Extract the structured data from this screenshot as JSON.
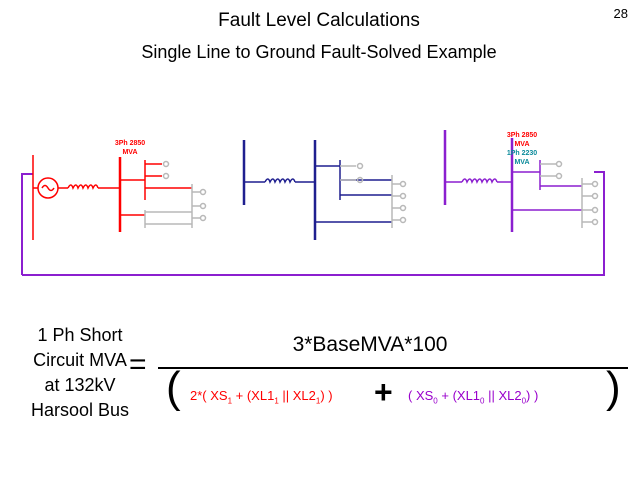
{
  "slide_number": "28",
  "title": "Fault Level Calculations",
  "subtitle": "Single Line to Ground Fault-Solved Example",
  "diagram": {
    "bus1_label": [
      "3Ph 2850",
      "MVA"
    ],
    "bus4_label_3ph": [
      "3Ph 2850",
      "MVA"
    ],
    "bus4_label_1ph": [
      "1Ph 2230",
      "MVA"
    ],
    "colors": {
      "red": "#ff0000",
      "blue": "#1f1f8f",
      "purple": "#8b1fcf",
      "gray": "#b8b8b8"
    }
  },
  "formula": {
    "lhs": [
      "1 Ph Short",
      "Circuit MVA",
      "at 132kV",
      "Harsool Bus"
    ],
    "equals": "=",
    "numerator": "3*BaseMVA*100",
    "left_paren": "(",
    "right_paren": ")",
    "plus": "+",
    "term1": {
      "prefix": "2*( XS",
      "sub1": "1",
      "mid1": " + (XL1",
      "sub2": "1",
      "mid2": " || XL2",
      "sub3": "1",
      "suffix": ")  )"
    },
    "term2": {
      "prefix": "(  XS",
      "sub1": "0",
      "mid1": "  +  (XL1",
      "sub2": "0",
      "mid2": " || XL2",
      "sub3": "0",
      "suffix": ")   )"
    }
  }
}
